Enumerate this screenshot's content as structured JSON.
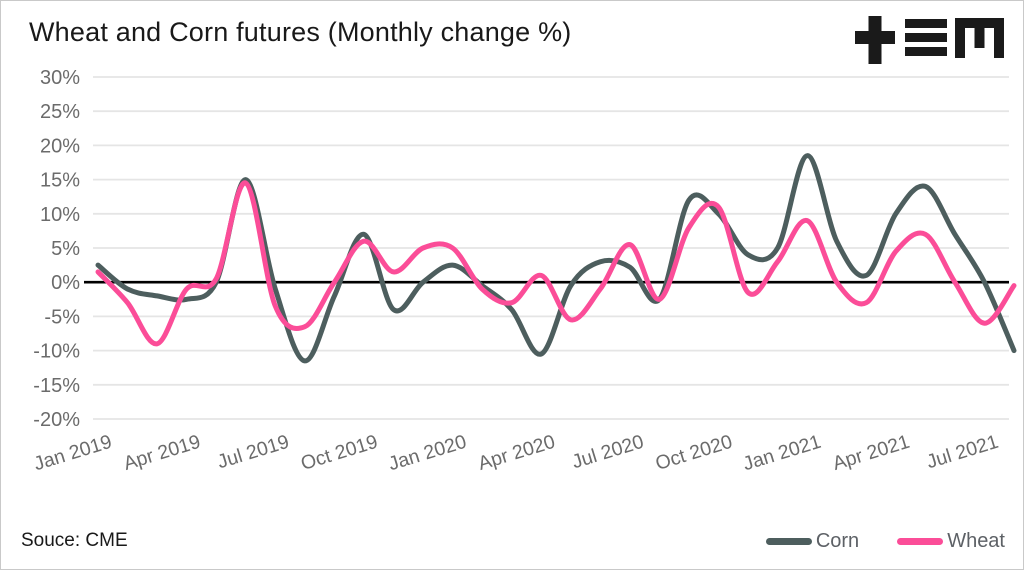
{
  "title": "Wheat and Corn futures (Monthly change %)",
  "source": "Souce: CME",
  "logo": {
    "name": "tem-logo",
    "color": "#1a1a1a"
  },
  "colors": {
    "background": "#ffffff",
    "border": "#c9c9c9",
    "corn": "#4d5e5e",
    "wheat": "#fb4d98",
    "grid": "#e5e5e5",
    "zero_line": "#000000",
    "axis_label": "#6b6b6b",
    "title_text": "#191919",
    "legend_text": "#5d6166"
  },
  "legend": [
    {
      "label": "Corn",
      "color": "#4d5e5e"
    },
    {
      "label": "Wheat",
      "color": "#fb4d98"
    }
  ],
  "chart_data": {
    "type": "line",
    "title": "Wheat and Corn futures (Monthly change %)",
    "xlabel": "",
    "ylabel": "Monthly change %",
    "ylim": [
      -20,
      30
    ],
    "grid": "horizontal",
    "smoothing": "spline",
    "legend_position": "bottom-right",
    "x": [
      "Jan 2019",
      "Feb 2019",
      "Mar 2019",
      "Apr 2019",
      "May 2019",
      "Jun 2019",
      "Jul 2019",
      "Aug 2019",
      "Sep 2019",
      "Oct 2019",
      "Nov 2019",
      "Dec 2019",
      "Jan 2020",
      "Feb 2020",
      "Mar 2020",
      "Apr 2020",
      "May 2020",
      "Jun 2020",
      "Jul 2020",
      "Aug 2020",
      "Sep 2020",
      "Oct 2020",
      "Nov 2020",
      "Dec 2020",
      "Jan 2021",
      "Feb 2021",
      "Mar 2021",
      "Apr 2021",
      "May 2021",
      "Jun 2021",
      "Jul 2021",
      "Aug 2021"
    ],
    "x_tick_labels": [
      "Jan 2019",
      "Apr 2019",
      "Jul 2019",
      "Oct 2019",
      "Jan 2020",
      "Apr 2020",
      "Jul 2020",
      "Oct 2020",
      "Jan 2021",
      "Apr 2021",
      "Jul 2021"
    ],
    "y_ticks": [
      30,
      25,
      20,
      15,
      10,
      5,
      0,
      -5,
      -10,
      -15,
      -20
    ],
    "y_tick_labels": [
      "30%",
      "25%",
      "20%",
      "15%",
      "10%",
      "5%",
      "0%",
      "-5%",
      "-10%",
      "-15%",
      "-20%"
    ],
    "series": [
      {
        "name": "Corn",
        "color": "#4d5e5e",
        "values": [
          2.5,
          -1,
          -2,
          -2.5,
          0,
          15,
          -1,
          -11.5,
          -2,
          7,
          -4,
          0,
          2.5,
          -0.5,
          -4,
          -10.5,
          -0.5,
          3,
          2.2,
          -2.5,
          12,
          10,
          4,
          5,
          18.5,
          6,
          1,
          10,
          14,
          7,
          0,
          -10
        ]
      },
      {
        "name": "Wheat",
        "color": "#fb4d98",
        "values": [
          1.5,
          -3,
          -9,
          -1,
          0.5,
          14.5,
          -3.5,
          -6.5,
          0,
          6,
          1.5,
          5,
          5,
          -1,
          -3,
          1,
          -5.5,
          -1,
          5.5,
          -2.5,
          8,
          11,
          -1.5,
          3,
          9,
          0,
          -3,
          4.5,
          7,
          0,
          -6,
          -0.5
        ]
      }
    ]
  }
}
